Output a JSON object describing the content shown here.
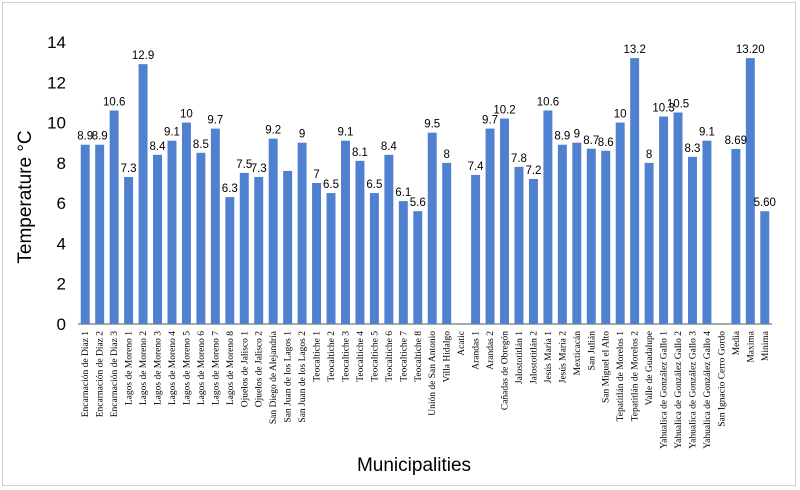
{
  "chart_data": {
    "type": "bar",
    "xlabel": "Municipalities",
    "ylabel": "Temperature °C",
    "ylim": [
      0,
      14
    ],
    "yticks": [
      "0",
      "2",
      "4",
      "6",
      "8",
      "10",
      "12",
      "14"
    ],
    "grid": false,
    "bar_color": "#4f81d0",
    "categories": [
      "Encarnación de Díaz 1",
      "Encarnación de Díaz 2",
      "Encarnación de Díaz 3",
      "Lagos de Moreno 1",
      "Lagos de Moreno 2",
      "Lagos de Moreno 3",
      "Lagos de Moreno 4",
      "Lagos de Moreno 5",
      "Lagos de Moreno 6",
      "Lagos de Moreno 7",
      "Lagos de Moreno 8",
      "Ojuelos de Jalisco 1",
      "Ojuelos de Jalisco 2",
      "San Diego de Alejandría",
      "San Juan de los Lagos 1",
      "San Juan de los Lagos 2",
      "Teocaltiche 1",
      "Teocaltiche 2",
      "Teocaltiche 3",
      "Teocaltiche 4",
      "Teocaltiche 5",
      "Teocaltiche 6",
      "Teocaltiche 7",
      "Teocaltiche 8",
      "Unión de San Antonio",
      "Villa Hidalgo",
      "Acatic",
      "Arandas 1",
      "Arandas 2",
      "Cañadas de Obregón",
      "Jalostotitlán 1",
      "Jalostotitlán 2",
      "Jesús María 1",
      "Jesús María 2",
      "Mexticacán",
      "San Julián",
      "San Miguel el Alto",
      "Tepatitlán de Morelos 1",
      "Tepatitlán de Morelos 2",
      "Valle de Guadalupe",
      "Yahualica de González Gallo 1",
      "Yahualica de González Gallo 2",
      "Yahualica de González Gallo 3",
      "Yahualica de González Gallo 4",
      "San Ignacio Cerro Gordo",
      "Media",
      "Maxima",
      "Minima"
    ],
    "values": [
      8.9,
      8.9,
      10.6,
      7.3,
      12.9,
      8.4,
      9.1,
      10,
      8.5,
      9.7,
      6.3,
      7.5,
      7.3,
      9.2,
      7.6,
      9,
      7,
      6.5,
      9.1,
      8.1,
      6.5,
      8.4,
      6.1,
      5.6,
      9.5,
      8,
      null,
      7.4,
      9.7,
      10.2,
      7.8,
      7.2,
      10.6,
      8.9,
      9,
      8.7,
      8.6,
      10,
      13.2,
      8,
      10.3,
      10.5,
      8.3,
      9.1,
      null,
      8.69,
      13.2,
      5.6
    ],
    "data_labels": [
      "8.9",
      "8.9",
      "10.6",
      "7.3",
      "12.9",
      "8.4",
      "9.1",
      "10",
      "8.5",
      "9.7",
      "6.3",
      "7.5",
      "7.3",
      "9.2",
      "",
      "9",
      "7",
      "6.5",
      "9.1",
      "8.1",
      "6.5",
      "8.4",
      "6.1",
      "5.6",
      "9.5",
      "8",
      "",
      "7.4",
      "9.7",
      "10.2",
      "7.8",
      "7.2",
      "10.6",
      "8.9",
      "9",
      "8.7",
      "8.6",
      "10",
      "13.2",
      "8",
      "10.3",
      "10.5",
      "8.3",
      "9.1",
      "",
      "8.69",
      "13.20",
      "5.60"
    ]
  }
}
